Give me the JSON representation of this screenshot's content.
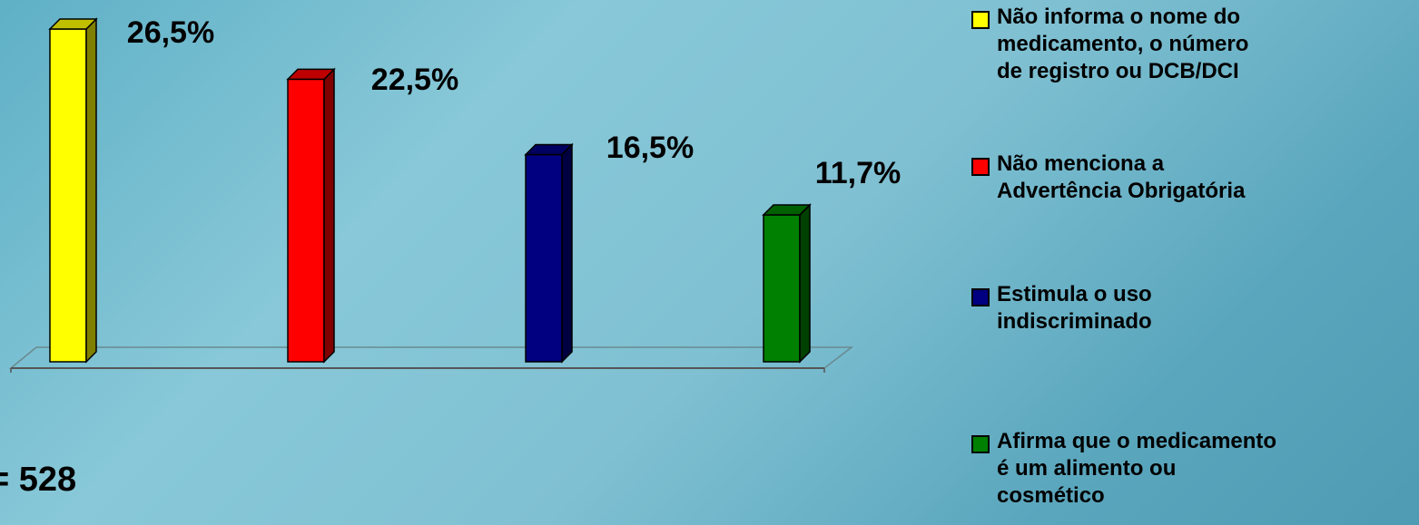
{
  "chart_data": {
    "type": "bar",
    "title": "",
    "xlabel": "",
    "ylabel": "",
    "ylim": [
      0,
      26.5
    ],
    "categories": [
      "Não informa o nome do\nmedicamento, o número\nde registro ou DCB/DCI",
      "Não menciona a\nAdvertência Obrigatória",
      "Estimula o uso\nindiscriminado",
      "Afirma que o medicamento\né um alimento ou\ncosmético"
    ],
    "values": [
      26.5,
      22.5,
      16.5,
      11.7
    ],
    "value_labels": [
      "26,5%",
      "22,5%",
      "16,5%",
      "11,7%"
    ],
    "colors": [
      "#ffff00",
      "#ff0000",
      "#000080",
      "#008000"
    ],
    "legend_position": "right",
    "grid": false,
    "three_d": true
  },
  "legend": {
    "items": [
      {
        "label": "Não informa o nome do\nmedicamento, o número\nde registro ou DCB/DCI",
        "color": "#ffff00"
      },
      {
        "label": "Não menciona a\nAdvertência Obrigatória",
        "color": "#ff0000"
      },
      {
        "label": "Estimula o uso\nindiscriminado",
        "color": "#000080"
      },
      {
        "label": "Afirma que o medicamento\né um alimento ou\ncosmético",
        "color": "#008000"
      }
    ]
  },
  "sample_size_label": "= 528"
}
